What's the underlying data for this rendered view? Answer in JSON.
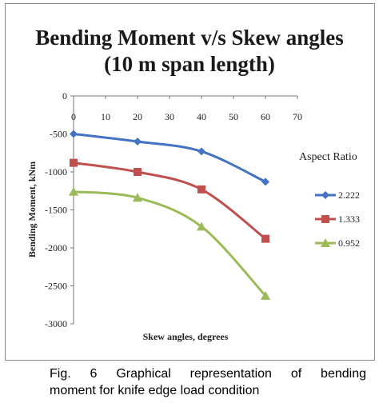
{
  "chart_data": {
    "type": "line",
    "title": [
      "Bending Moment v/s Skew angles",
      "(10 m span length)"
    ],
    "xlabel": "Skew angles, degrees",
    "ylabel": "Bending Moment, kNm",
    "xlim": [
      0,
      70
    ],
    "ylim": [
      -3000,
      0
    ],
    "xticks": [
      0,
      10,
      20,
      30,
      40,
      50,
      60,
      70
    ],
    "yticks": [
      0,
      -500,
      -1000,
      -1500,
      -2000,
      -2500,
      -3000
    ],
    "x": [
      0,
      20,
      40,
      60
    ],
    "grid": false,
    "legend_title": "Aspect Ratio",
    "legend_position": "right",
    "series": [
      {
        "name": "2.222",
        "color": "#4472C4",
        "marker": "diamond",
        "values": [
          -500,
          -600,
          -730,
          -1130
        ]
      },
      {
        "name": "1.333",
        "color": "#C0504D",
        "marker": "square",
        "values": [
          -880,
          -1000,
          -1230,
          -1880
        ]
      },
      {
        "name": "0.952",
        "color": "#9BBB59",
        "marker": "triangle",
        "values": [
          -1260,
          -1340,
          -1720,
          -2630
        ]
      }
    ]
  },
  "caption": {
    "line1": "Fig. 6 Graphical representation of bending",
    "line2": "moment for knife edge load condition"
  }
}
